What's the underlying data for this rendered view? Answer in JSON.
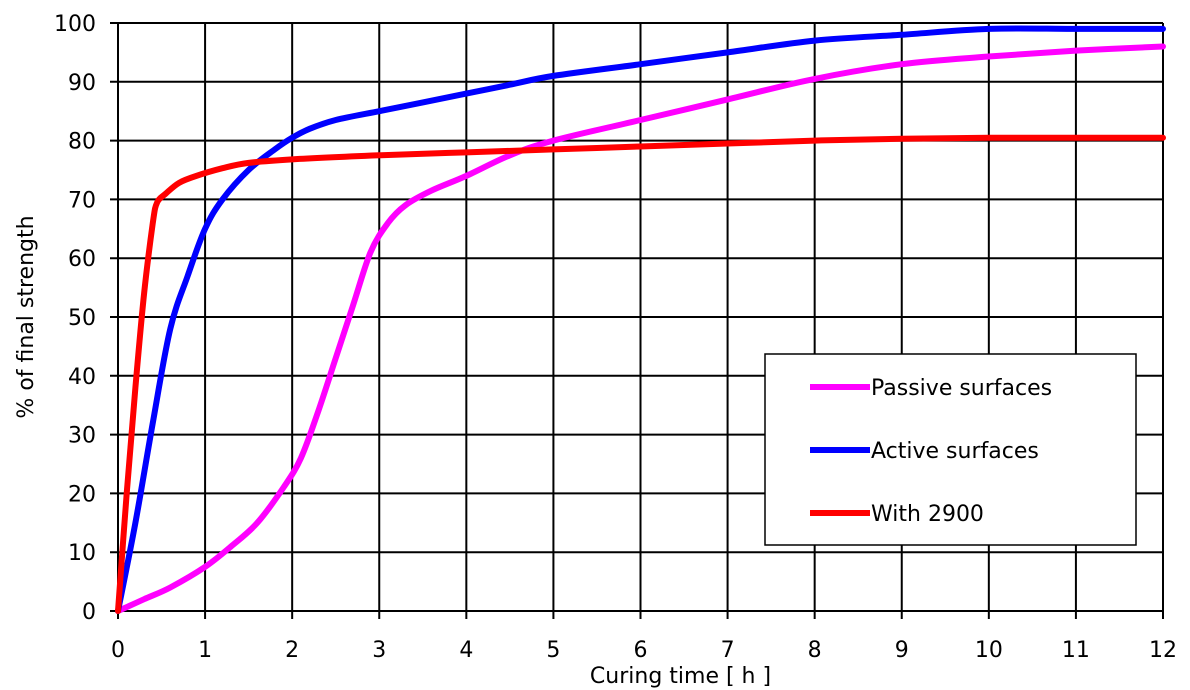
{
  "chart_data": {
    "type": "line",
    "title": "",
    "xlabel": "Curing time [ h ]",
    "ylabel": "% of final strength",
    "xlim": [
      0,
      12
    ],
    "ylim": [
      0,
      100
    ],
    "xticks": [
      0,
      1,
      2,
      3,
      4,
      5,
      6,
      7,
      8,
      9,
      10,
      11,
      12
    ],
    "yticks": [
      0,
      10,
      20,
      30,
      40,
      50,
      60,
      70,
      80,
      90,
      100
    ],
    "grid": true,
    "legend_position": "lower-right",
    "series": [
      {
        "name": "Passive surfaces",
        "color": "#ff00ff",
        "x": [
          0,
          0.3,
          0.6,
          1.0,
          1.3,
          1.6,
          1.9,
          2.1,
          2.3,
          2.5,
          2.7,
          2.9,
          3.1,
          3.3,
          3.6,
          4.0,
          4.5,
          5.0,
          6.0,
          7.0,
          8.0,
          9.0,
          10.0,
          11.0,
          12.0
        ],
        "y": [
          0,
          2,
          4,
          7.5,
          11,
          15,
          21,
          26,
          34,
          43,
          52,
          61,
          66,
          69,
          71.5,
          74,
          77.5,
          80,
          83.5,
          87,
          90.5,
          93,
          94.3,
          95.3,
          96
        ]
      },
      {
        "name": "Active surfaces",
        "color": "#0000ff",
        "x": [
          0,
          0.2,
          0.4,
          0.6,
          0.8,
          1.0,
          1.2,
          1.5,
          1.8,
          2.0,
          2.2,
          2.5,
          3.0,
          3.5,
          4.0,
          4.5,
          5.0,
          6.0,
          7.0,
          8.0,
          9.0,
          10.0,
          11.0,
          12.0
        ],
        "y": [
          0,
          15,
          32,
          48,
          57,
          65,
          70,
          75,
          78.5,
          80.5,
          82,
          83.5,
          85,
          86.5,
          88,
          89.5,
          91,
          93,
          95,
          97,
          98,
          99,
          99,
          99
        ]
      },
      {
        "name": "With 2900",
        "color": "#ff0000",
        "x": [
          0,
          0.1,
          0.2,
          0.3,
          0.4,
          0.45,
          0.55,
          0.7,
          0.9,
          1.2,
          1.5,
          2.0,
          3.0,
          4.0,
          5.0,
          6.0,
          7.0,
          8.0,
          9.0,
          10.0,
          11.0,
          12.0
        ],
        "y": [
          0,
          20,
          38,
          54,
          66,
          69.5,
          71,
          72.8,
          74,
          75.3,
          76.2,
          76.8,
          77.5,
          78,
          78.5,
          79,
          79.5,
          80,
          80.3,
          80.5,
          80.5,
          80.5
        ]
      }
    ]
  }
}
